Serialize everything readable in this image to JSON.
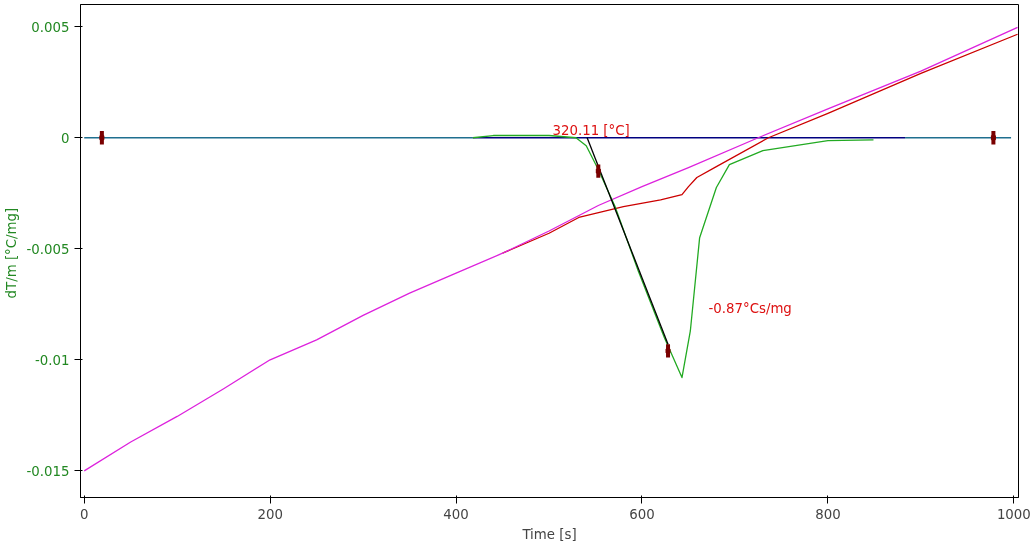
{
  "chart_data": {
    "type": "line",
    "xlabel": "Time [s]",
    "ylabel": "dT/m  [°C/mg]",
    "xlim": [
      -4,
      1005
    ],
    "ylim": [
      -0.0162,
      0.006
    ],
    "xticks": [
      0,
      200,
      400,
      600,
      800,
      1000
    ],
    "yticks": [
      0.005,
      0,
      -0.005,
      -0.01,
      -0.015
    ],
    "grid": false,
    "series": [
      {
        "type": "line",
        "color": "#1f6f8f",
        "x": [
          0,
          418,
          null,
          883,
          997
        ],
        "values": [
          0,
          0,
          null,
          0,
          0
        ]
      },
      {
        "type": "line",
        "color": "#000080",
        "x": [
          418,
          883
        ],
        "values": [
          0,
          0
        ]
      },
      {
        "type": "line",
        "color": "#cc0000",
        "x": [
          450,
          500,
          532,
          580,
          620,
          643,
          650,
          659,
          680,
          736,
          800,
          900,
          1004
        ],
        "values": [
          -0.0052,
          -0.0043,
          -0.00359,
          -0.0031,
          -0.0028,
          -0.00256,
          -0.0022,
          -0.00179,
          -0.0013,
          0,
          0.0011,
          0.0029,
          0.00466
        ]
      },
      {
        "type": "line",
        "color": "#dd22dd",
        "x": [
          0,
          50,
          100,
          150,
          200,
          250,
          300,
          350,
          400,
          450,
          500,
          553,
          600,
          650,
          725,
          800,
          900,
          1004
        ],
        "values": [
          -0.015,
          -0.0137,
          -0.01255,
          -0.0113,
          -0.01,
          -0.0091,
          -0.008,
          -0.007,
          -0.0061,
          -0.0052,
          -0.0042,
          -0.00305,
          -0.0022,
          -0.00135,
          0,
          0.0013,
          0.003,
          0.00497
        ]
      },
      {
        "color": "#22aa22",
        "x": [
          418,
          440,
          470,
          500,
          529,
          540,
          553,
          571,
          596,
          624,
          643,
          652,
          662,
          680,
          694,
          730,
          800,
          849
        ],
        "values": [
          0,
          0.0001,
          0.0001,
          0.0001,
          0,
          -0.00036,
          -0.00143,
          -0.0031,
          -0.006,
          -0.009,
          -0.0108,
          -0.0087,
          -0.0045,
          -0.00224,
          -0.00121,
          -0.00058,
          -0.00013,
          -0.0001
        ]
      },
      {
        "type": "line",
        "color": "#000000",
        "x": [
          541,
          628
        ],
        "values": [
          0,
          -0.0093
        ]
      },
      {
        "type": "scatter",
        "marker": "square",
        "color": "#7a0000",
        "x": [
          19,
          553,
          628,
          978
        ],
        "values": [
          0,
          -0.0015,
          -0.0096,
          0
        ],
        "errors": [
          0.0003,
          0.0003,
          0.0003,
          0.0003
        ]
      }
    ],
    "annotations": [
      "320.11 [°C]",
      "-0.87°Cs/mg"
    ]
  }
}
